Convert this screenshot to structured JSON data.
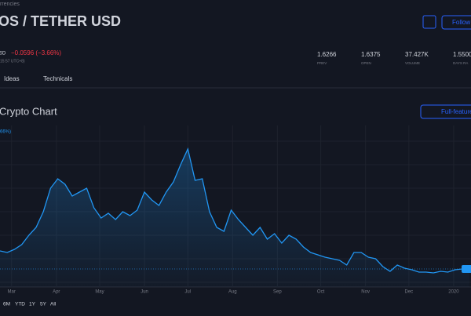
{
  "breadcrumb": "rrencies",
  "title": "OS / TETHER USD",
  "currency": "SD",
  "change": "−0.0596 (−3.66%)",
  "time": "15:57 UTC+8)",
  "follow": "Follow",
  "stats": [
    {
      "value": "1.6266",
      "label": "PREV"
    },
    {
      "value": "1.6375",
      "label": "OPEN"
    },
    {
      "value": "37.427K",
      "label": "VOLUME"
    },
    {
      "value": "1.5500",
      "label": "DAYS RA"
    }
  ],
  "tabs": [
    "Ideas",
    "Technicals"
  ],
  "chart_data": {
    "type": "line",
    "title": "Crypto Chart",
    "button": "Full-feature",
    "legend_fragment": "66%)",
    "x": [
      -8,
      -3,
      2,
      7,
      12,
      17,
      22,
      27,
      32,
      37,
      42,
      47,
      52,
      57,
      62,
      67,
      72,
      77,
      82,
      87,
      92,
      97,
      102,
      107,
      112,
      117,
      122,
      127,
      132,
      137,
      142,
      147,
      152,
      157,
      162,
      167,
      172,
      177,
      182,
      187,
      192,
      197,
      202,
      207,
      212,
      217,
      222,
      227,
      232,
      237,
      242,
      247,
      252,
      257,
      262,
      267,
      272,
      277,
      282,
      287,
      292,
      297,
      302,
      307,
      312,
      317
    ],
    "series": [
      {
        "color": "#2196f3",
        "values": [
          2,
          1.9,
          2.1,
          2.4,
          3,
          3.5,
          4.5,
          6,
          6.6,
          6.25,
          5.5,
          5.75,
          6,
          4.75,
          4.1,
          4.4,
          4,
          4.5,
          4.25,
          4.6,
          5.75,
          5.25,
          4.9,
          5.75,
          6.4,
          7.5,
          8.5,
          6.5,
          6.6,
          4.5,
          3.5,
          3.25,
          4.6,
          4,
          3.5,
          3,
          3.5,
          2.75,
          3.1,
          2.5,
          3,
          2.75,
          2.25,
          1.9,
          1.75,
          1.6,
          1.5,
          1.4,
          1.1,
          1.9,
          1.9,
          1.6,
          1.5,
          1,
          0.7,
          1.1,
          0.9,
          0.8,
          0.65,
          0.65,
          0.6,
          0.7,
          0.65,
          0.8,
          0.85,
          0.85
        ]
      }
    ],
    "xlim": [
      -8,
      318
    ],
    "ylim": [
      0,
      10
    ],
    "xticks": [
      {
        "value": 0,
        "label": "Mar"
      },
      {
        "value": 31,
        "label": "Apr"
      },
      {
        "value": 61,
        "label": "May"
      },
      {
        "value": 92,
        "label": "Jun"
      },
      {
        "value": 122,
        "label": "Jul"
      },
      {
        "value": 153,
        "label": "Aug"
      },
      {
        "value": 184,
        "label": "Sep"
      },
      {
        "value": 214,
        "label": "Oct"
      },
      {
        "value": 245,
        "label": "Nov"
      },
      {
        "value": 275,
        "label": "Dec"
      },
      {
        "value": 306,
        "label": "2020"
      }
    ],
    "ranges": [
      "6M",
      "YTD",
      "1Y",
      "5Y",
      "All"
    ]
  }
}
